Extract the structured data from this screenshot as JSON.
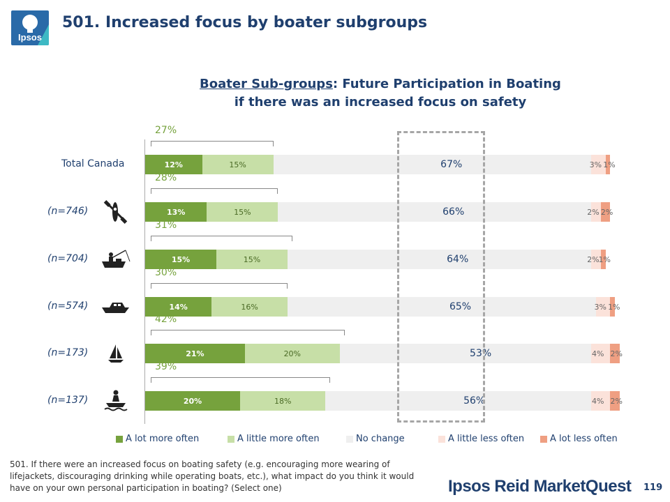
{
  "header": {
    "logo_text": "Ipsos",
    "title": "501. Increased focus by boater subgroups"
  },
  "chart_title": {
    "underlined": "Boater Sub-groups",
    "rest_line1": ": Future Participation in Boating",
    "line2": "if there was an increased focus on safety"
  },
  "chart_data": {
    "type": "bar",
    "orientation": "horizontal",
    "stacked": true,
    "categories": [
      "Total Canada",
      "(n=746)",
      "(n=704)",
      "(n=574)",
      "(n=173)",
      "(n=137)"
    ],
    "category_icons": [
      "",
      "kayak-icon",
      "fishing-boat-icon",
      "motorboat-icon",
      "sailboat-icon",
      "jetski-icon"
    ],
    "series": [
      {
        "name": "A lot more often",
        "color": "#76a23d",
        "values": [
          12,
          13,
          15,
          14,
          21,
          20
        ]
      },
      {
        "name": "A little more often",
        "color": "#c7dfa7",
        "values": [
          15,
          15,
          15,
          16,
          20,
          18
        ]
      },
      {
        "name": "No change",
        "color": "#efefef",
        "values": [
          67,
          66,
          64,
          65,
          53,
          56
        ]
      },
      {
        "name": "A little less often",
        "color": "#fbe2da",
        "values": [
          3,
          2,
          2,
          3,
          4,
          4
        ]
      },
      {
        "name": "A lot less often",
        "color": "#ef9f82",
        "values": [
          1,
          2,
          1,
          1,
          2,
          2
        ]
      }
    ],
    "net_more_often": [
      27,
      28,
      31,
      30,
      42,
      39
    ],
    "value_suffix": "%",
    "grid": false,
    "legend_position": "bottom"
  },
  "footnote": "501. If there were an increased focus on boating safety (e.g. encouraging more wearing of lifejackets, discouraging drinking while operating boats, etc.), what impact do you think it would have on your own personal participation in boating? (Select one)",
  "brand": "Ipsos Reid MarketQuest",
  "page_number": "119"
}
